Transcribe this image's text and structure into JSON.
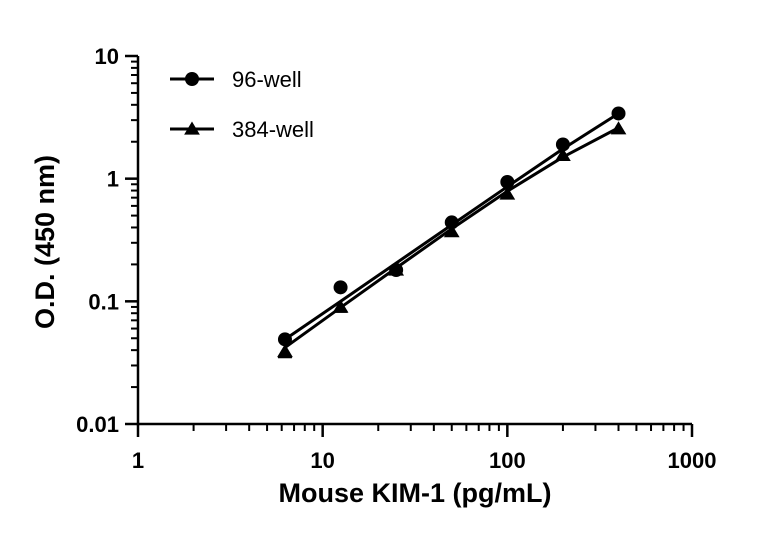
{
  "chart_data": {
    "type": "line",
    "xscale": "log",
    "yscale": "log",
    "xlim": [
      1,
      1000
    ],
    "ylim": [
      0.01,
      10
    ],
    "xlabel": "Mouse KIM-1 (pg/mL)",
    "ylabel": "O.D. (450 nm)",
    "x_ticks": [
      1,
      10,
      100,
      1000
    ],
    "x_tick_labels": [
      "1",
      "10",
      "100",
      "1000"
    ],
    "y_ticks": [
      0.01,
      0.1,
      1,
      10
    ],
    "y_tick_labels": [
      "0.01",
      "0.1",
      "1",
      "10"
    ],
    "legend_position": "top-left",
    "series": [
      {
        "name": "96-well",
        "marker": "circle",
        "x": [
          6.25,
          12.5,
          25,
          50,
          100,
          200,
          400
        ],
        "y": [
          0.049,
          0.13,
          0.18,
          0.44,
          0.94,
          1.9,
          3.4
        ],
        "yerr": [
          0,
          0,
          0,
          0,
          0,
          0,
          0
        ],
        "fit_y": [
          0.049,
          0.1,
          0.205,
          0.42,
          0.86,
          1.75,
          3.4
        ]
      },
      {
        "name": "384-well",
        "marker": "triangle",
        "x": [
          6.25,
          12.5,
          25,
          50,
          100,
          200,
          400
        ],
        "y": [
          0.039,
          0.09,
          0.18,
          0.37,
          0.75,
          1.55,
          2.55
        ],
        "yerr": [
          0.004,
          0.008,
          0,
          0,
          0,
          0,
          0
        ],
        "fit_y": [
          0.042,
          0.089,
          0.187,
          0.39,
          0.79,
          1.5,
          2.6
        ]
      }
    ]
  },
  "colors": {
    "ink": "#000000",
    "background": "#ffffff"
  }
}
